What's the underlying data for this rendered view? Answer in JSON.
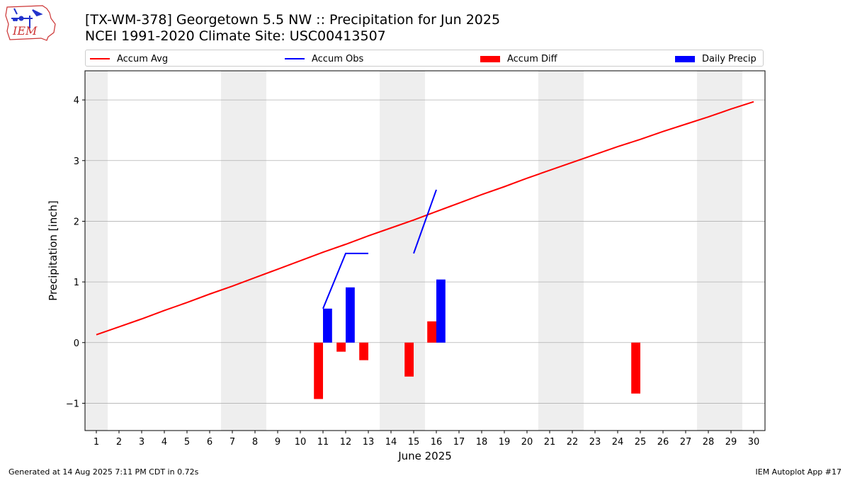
{
  "header": {
    "title_line1": "[TX-WM-378] Georgetown 5.5 NW :: Precipitation for Jun 2025",
    "title_line2": "NCEI 1991-2020 Climate Site: USC00413507",
    "logo_text": "IEM",
    "logo_icon": "iowa-state-outline-logo"
  },
  "legend": [
    {
      "label": "Accum Avg",
      "color": "#ff0000",
      "kind": "line"
    },
    {
      "label": "Accum Obs",
      "color": "#0000ff",
      "kind": "line"
    },
    {
      "label": "Accum Diff",
      "color": "#ff0000",
      "kind": "bar"
    },
    {
      "label": "Daily Precip",
      "color": "#0000ff",
      "kind": "bar"
    }
  ],
  "footer": {
    "left": "Generated at 14 Aug 2025 7:11 PM CDT in 0.72s",
    "right": "IEM Autoplot App #17"
  },
  "chart_data": {
    "type": "bar",
    "xlabel": "June 2025",
    "ylabel": "Precipitation [inch]",
    "xlim": [
      0.5,
      30.5
    ],
    "ylim": [
      -1.45,
      4.48
    ],
    "yticks": [
      -1,
      0,
      1,
      2,
      3,
      4
    ],
    "ytick_labels": [
      "−1",
      "0",
      "1",
      "2",
      "3",
      "4"
    ],
    "xticks": [
      1,
      2,
      3,
      4,
      5,
      6,
      7,
      8,
      9,
      10,
      11,
      12,
      13,
      14,
      15,
      16,
      17,
      18,
      19,
      20,
      21,
      22,
      23,
      24,
      25,
      26,
      27,
      28,
      29,
      30
    ],
    "grid": "horizontal",
    "weekend_shading": [
      [
        0.5,
        1.5
      ],
      [
        6.5,
        8.5
      ],
      [
        13.5,
        15.5
      ],
      [
        20.5,
        22.5
      ],
      [
        27.5,
        29.5
      ]
    ],
    "shading_color": "#eeeeee",
    "series": [
      {
        "name": "Accum Avg",
        "type": "line",
        "color": "#ff0000",
        "x": [
          1,
          2,
          3,
          4,
          5,
          6,
          7,
          8,
          9,
          10,
          11,
          12,
          13,
          14,
          15,
          16,
          17,
          18,
          19,
          20,
          21,
          22,
          23,
          24,
          25,
          26,
          27,
          28,
          29,
          30
        ],
        "values": [
          0.13,
          0.26,
          0.39,
          0.53,
          0.66,
          0.8,
          0.93,
          1.07,
          1.21,
          1.35,
          1.49,
          1.62,
          1.76,
          1.89,
          2.02,
          2.16,
          2.3,
          2.44,
          2.57,
          2.71,
          2.84,
          2.97,
          3.1,
          3.23,
          3.35,
          3.48,
          3.6,
          3.72,
          3.85,
          3.97
        ]
      },
      {
        "name": "Accum Obs",
        "type": "line",
        "color": "#0000ff",
        "segments": [
          {
            "x": [
              11,
              12,
              13
            ],
            "values": [
              0.56,
              1.47,
              1.47
            ]
          },
          {
            "x": [
              15,
              16
            ],
            "values": [
              1.47,
              2.52
            ]
          }
        ]
      },
      {
        "name": "Accum Diff",
        "type": "bar",
        "color": "#ff0000",
        "x": [
          11,
          12,
          13,
          15,
          16,
          25
        ],
        "values": [
          -0.93,
          -0.15,
          -0.29,
          -0.56,
          0.35,
          -0.84
        ]
      },
      {
        "name": "Daily Precip",
        "type": "bar",
        "color": "#0000ff",
        "x": [
          11,
          12,
          16
        ],
        "values": [
          0.56,
          0.91,
          1.04
        ]
      }
    ]
  }
}
